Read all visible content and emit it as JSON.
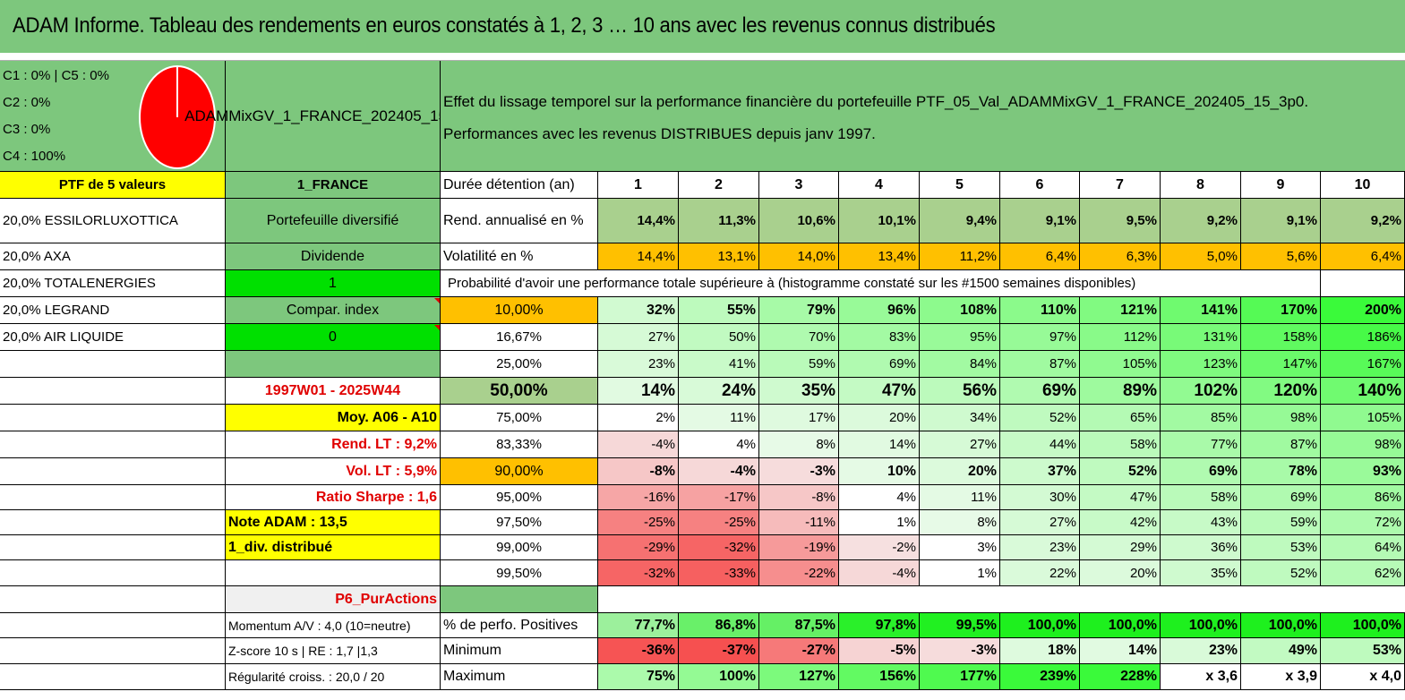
{
  "title": "ADAM Informe. Tableau des rendements en euros constatés à 1, 2, 3 … 10 ans avec les revenus connus distribués",
  "legend": [
    "C1 : 0% | C5 : 0%",
    "C2 : 0%",
    "C3 : 0%",
    "C4 : 100%"
  ],
  "pie": {
    "C4_share": 1.0,
    "color": "#ff0000"
  },
  "ptf_name": "ADAMMixGV_1_FRANCE_202405_15_3p0",
  "effect_line1": "Effet du lissage temporel sur la performance financière du portefeuille PTF_05_Val_ADAMMixGV_1_FRANCE_202405_15_3p0.",
  "effect_line2": "Performances avec les revenus DISTRIBUES depuis janv 1997.",
  "left_col": [
    "PTF de 5 valeurs",
    "20,0% ESSILORLUXOTTICA",
    "20,0% AXA",
    "20,0% TOTALENERGIES",
    "20,0% LEGRAND",
    "20,0% AIR LIQUIDE"
  ],
  "mid_col": {
    "region": "1_FRANCE",
    "diversified": "Portefeuille diversifié",
    "dividend_label": "Dividende",
    "dividend_value": "1",
    "compar_label": "Compar. index",
    "compar_value": "0",
    "period": "1997W01 - 2025W44",
    "moy": "Moy. A06 - A10",
    "rend_lt": "Rend. LT : 9,2%",
    "vol_lt": "Vol. LT : 5,9%",
    "sharpe": "Ratio Sharpe : 1,6",
    "note": "Note ADAM : 13,5",
    "div": "1_div. distribué",
    "pur": "P6_PurActions",
    "momentum": "Momentum A/V : 4,0 (10=neutre)",
    "zscore": "Z-score 10 s | RE : 1,7 |1,3",
    "regularite": "Régularité croiss. : 20,0 / 20"
  },
  "header": {
    "label": "Durée détention (an)",
    "years": [
      "1",
      "2",
      "3",
      "4",
      "5",
      "6",
      "7",
      "8",
      "9",
      "10"
    ]
  },
  "rend": {
    "label": "Rend. annualisé en %",
    "values": [
      "14,4%",
      "11,3%",
      "10,6%",
      "10,1%",
      "9,4%",
      "9,1%",
      "9,5%",
      "9,2%",
      "9,1%",
      "9,2%"
    ]
  },
  "vol": {
    "label": "Volatilité en %",
    "values": [
      "14,4%",
      "13,1%",
      "14,0%",
      "13,4%",
      "11,2%",
      "6,4%",
      "6,3%",
      "5,0%",
      "5,6%",
      "6,4%"
    ]
  },
  "proba_title": "Probabilité d'avoir une performance totale supérieure à (histogramme constaté sur les #1500 semaines disponibles)",
  "quantiles": [
    {
      "label": "10,00%",
      "values": [
        "32%",
        "55%",
        "79%",
        "96%",
        "108%",
        "110%",
        "121%",
        "141%",
        "170%",
        "200%"
      ]
    },
    {
      "label": "16,67%",
      "values": [
        "27%",
        "50%",
        "70%",
        "83%",
        "95%",
        "97%",
        "112%",
        "131%",
        "158%",
        "186%"
      ]
    },
    {
      "label": "25,00%",
      "values": [
        "23%",
        "41%",
        "59%",
        "69%",
        "84%",
        "87%",
        "105%",
        "123%",
        "147%",
        "167%"
      ]
    },
    {
      "label": "50,00%",
      "values": [
        "14%",
        "24%",
        "35%",
        "47%",
        "56%",
        "69%",
        "89%",
        "102%",
        "120%",
        "140%"
      ]
    },
    {
      "label": "75,00%",
      "values": [
        "2%",
        "11%",
        "17%",
        "20%",
        "34%",
        "52%",
        "65%",
        "85%",
        "98%",
        "105%"
      ]
    },
    {
      "label": "83,33%",
      "values": [
        "-4%",
        "4%",
        "8%",
        "14%",
        "27%",
        "44%",
        "58%",
        "77%",
        "87%",
        "98%"
      ]
    },
    {
      "label": "90,00%",
      "values": [
        "-8%",
        "-4%",
        "-3%",
        "10%",
        "20%",
        "37%",
        "52%",
        "69%",
        "78%",
        "93%"
      ]
    },
    {
      "label": "95,00%",
      "values": [
        "-16%",
        "-17%",
        "-8%",
        "4%",
        "11%",
        "30%",
        "47%",
        "58%",
        "69%",
        "86%"
      ]
    },
    {
      "label": "97,50%",
      "values": [
        "-25%",
        "-25%",
        "-11%",
        "1%",
        "8%",
        "27%",
        "42%",
        "43%",
        "59%",
        "72%"
      ]
    },
    {
      "label": "99,00%",
      "values": [
        "-29%",
        "-32%",
        "-19%",
        "-2%",
        "3%",
        "23%",
        "29%",
        "36%",
        "53%",
        "64%"
      ]
    },
    {
      "label": "99,50%",
      "values": [
        "-32%",
        "-33%",
        "-22%",
        "-4%",
        "1%",
        "22%",
        "20%",
        "35%",
        "52%",
        "62%"
      ]
    }
  ],
  "positives": {
    "label": "% de perfo. Positives",
    "values": [
      "77,7%",
      "86,8%",
      "87,5%",
      "97,8%",
      "99,5%",
      "100,0%",
      "100,0%",
      "100,0%",
      "100,0%",
      "100,0%"
    ]
  },
  "minimum": {
    "label": "Minimum",
    "values": [
      "-36%",
      "-37%",
      "-27%",
      "-5%",
      "-3%",
      "18%",
      "14%",
      "23%",
      "49%",
      "53%"
    ]
  },
  "maximum": {
    "label": "Maximum",
    "values": [
      "75%",
      "100%",
      "127%",
      "156%",
      "177%",
      "239%",
      "228%",
      "x 3,6",
      "x 3,9",
      "x 4,0"
    ]
  },
  "colors": {
    "header_green": "#7dc77d",
    "yellow": "#ffff00",
    "orange": "#ffc000",
    "bright_green": "#00e000",
    "red_text": "#e00000"
  }
}
